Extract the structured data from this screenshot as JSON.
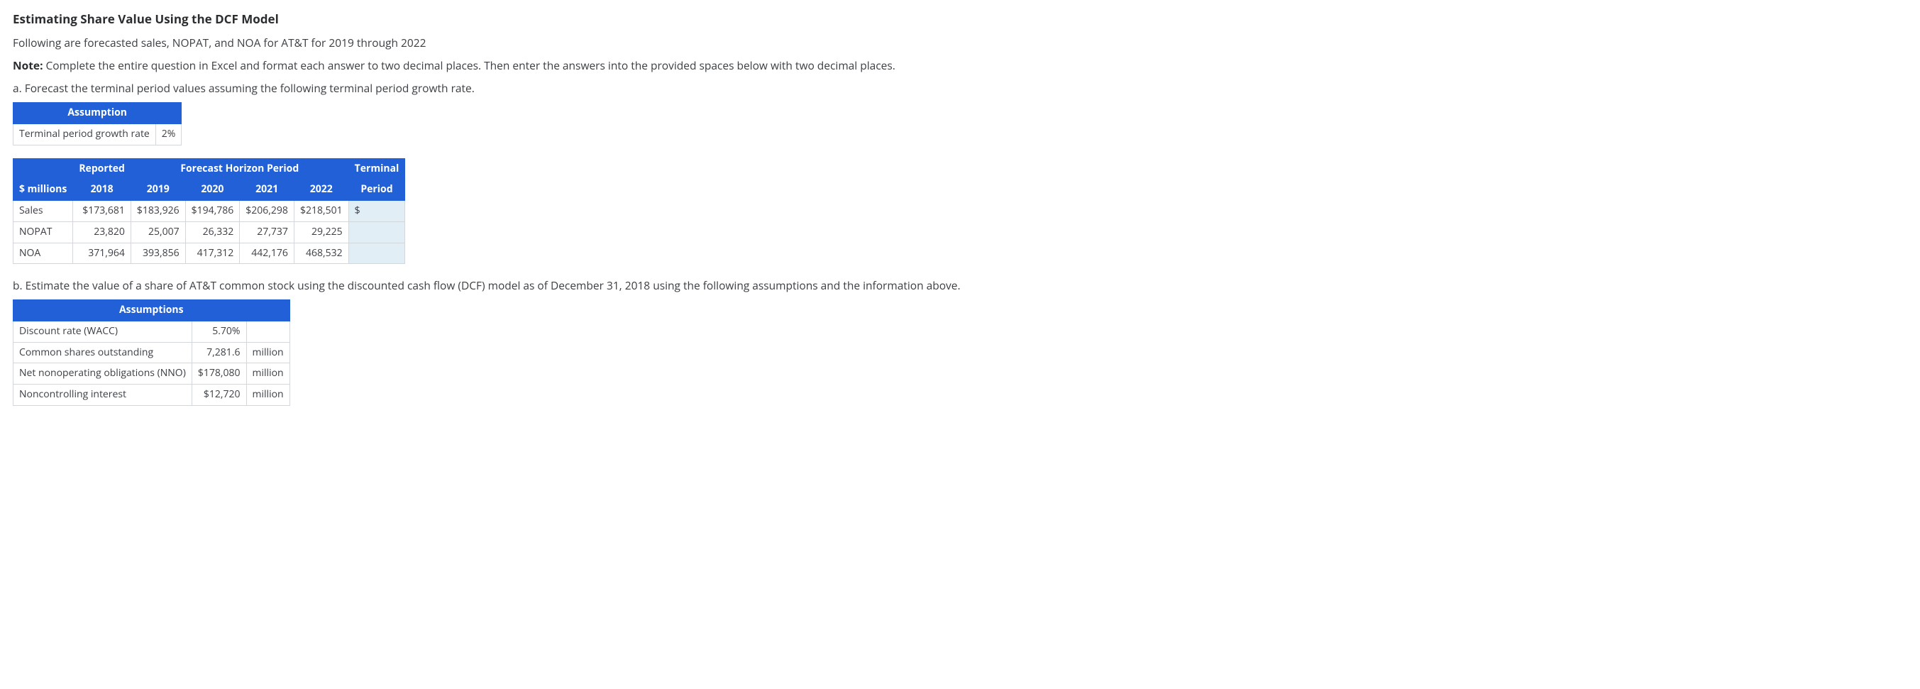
{
  "title": "Estimating Share Value Using the DCF Model",
  "intro": "Following are forecasted sales, NOPAT, and NOA for AT&T for 2019 through 2022",
  "note_label": "Note:",
  "note_text": " Complete the entire question in Excel and format each answer to two decimal places. Then enter the answers into the provided spaces below with two decimal places.",
  "partA_text": "a. Forecast the terminal period values assuming the following terminal period growth rate.",
  "assumptionA": {
    "header": "Assumption",
    "row_label": "Terminal period growth rate",
    "row_value": "2%"
  },
  "forecast": {
    "headers": {
      "blank": "",
      "reported": "Reported",
      "horizon": "Forecast Horizon Period",
      "terminal_top": "Terminal",
      "millions": "$ millions",
      "y2018": "2018",
      "y2019": "2019",
      "y2020": "2020",
      "y2021": "2021",
      "y2022": "2022",
      "terminal_bottom": "Period"
    },
    "rows": {
      "sales": {
        "label": "Sales",
        "v2018": "$173,681",
        "v2019": "$183,926",
        "v2020": "$194,786",
        "v2021": "$206,298",
        "v2022": "$218,501",
        "terminal": "$"
      },
      "nopat": {
        "label": "NOPAT",
        "v2018": "23,820",
        "v2019": "25,007",
        "v2020": "26,332",
        "v2021": "27,737",
        "v2022": "29,225",
        "terminal": ""
      },
      "noa": {
        "label": "NOA",
        "v2018": "371,964",
        "v2019": "393,856",
        "v2020": "417,312",
        "v2021": "442,176",
        "v2022": "468,532",
        "terminal": ""
      }
    }
  },
  "partB_text": "b. Estimate the value of a share of AT&T common stock using the discounted cash flow (DCF) model as of December 31, 2018 using the following assumptions and the information above.",
  "assumptionsB": {
    "header": "Assumptions",
    "rows": {
      "wacc": {
        "label": "Discount rate (WACC)",
        "value": "5.70%",
        "unit": ""
      },
      "shares": {
        "label": "Common shares outstanding",
        "value": "7,281.6",
        "unit": "million"
      },
      "nno": {
        "label": "Net nonoperating obligations (NNO)",
        "value": "$178,080",
        "unit": "million"
      },
      "nci": {
        "label": "Noncontrolling interest",
        "value": "$12,720",
        "unit": "million"
      }
    }
  }
}
